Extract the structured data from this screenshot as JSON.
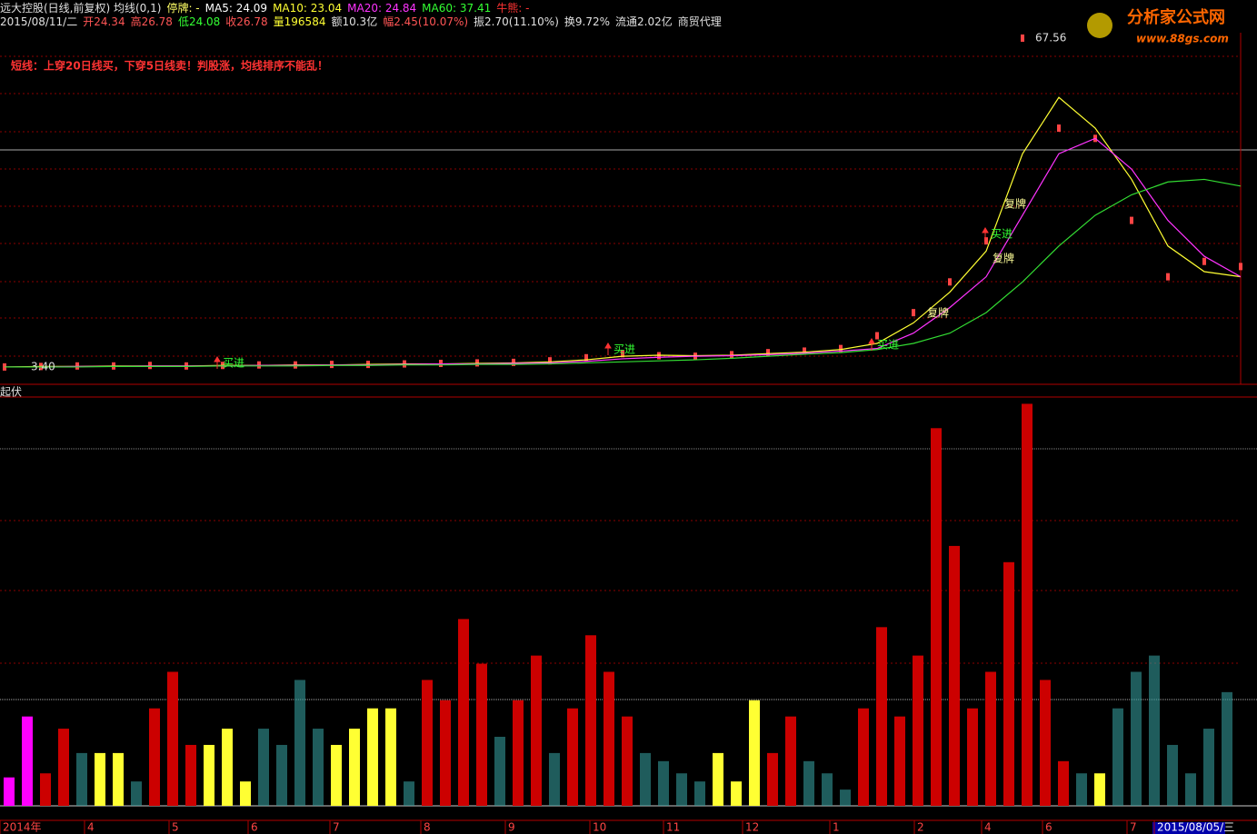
{
  "header": {
    "line1": [
      {
        "text": "远大控股(日线,前复权) 均线(0,1)",
        "color": "#e0e0e0"
      },
      {
        "text": "停牌: -",
        "color": "#ffff66"
      },
      {
        "text": "MA5: 24.09",
        "color": "#ffffff"
      },
      {
        "text": "MA10: 23.04",
        "color": "#ffff33"
      },
      {
        "text": "MA20: 24.84",
        "color": "#ff33ff"
      },
      {
        "text": "MA60: 37.41",
        "color": "#33ff33"
      },
      {
        "text": "牛熊: -",
        "color": "#ff3333"
      }
    ],
    "line2": [
      {
        "text": "2015/08/11/二",
        "color": "#e0e0e0"
      },
      {
        "text": "开24.34",
        "color": "#ff5555"
      },
      {
        "text": "高26.78",
        "color": "#ff5555"
      },
      {
        "text": "低24.08",
        "color": "#33ff33"
      },
      {
        "text": "收26.78",
        "color": "#ff5555"
      },
      {
        "text": "量196584",
        "color": "#ffff33"
      },
      {
        "text": "额10.3亿",
        "color": "#e0e0e0"
      },
      {
        "text": "幅2.45(10.07%)",
        "color": "#ff5555"
      },
      {
        "text": "振2.70(11.10%)",
        "color": "#e0e0e0"
      },
      {
        "text": "换9.72%",
        "color": "#e0e0e0"
      },
      {
        "text": "流通2.02亿",
        "color": "#e0e0e0"
      },
      {
        "text": "商贸代理",
        "color": "#e0e0e0"
      }
    ],
    "note": "短线：上穿20日线买，下穿5日线卖！判股涨，均线排序不能乱！",
    "logo": "分析家公式网",
    "url": "www.88gs.com"
  },
  "chart_data": [
    {
      "type": "line",
      "ylim": [
        0.2,
        71.1
      ],
      "max_label": {
        "value": 67.56,
        "label": "67.56"
      },
      "min_label": {
        "value": 3.4,
        "label": "3.40"
      },
      "annotations": [
        "买进",
        "买进",
        "买进",
        "买进",
        "复牌",
        "复牌",
        "复牌"
      ],
      "series": [
        {
          "color": "#ff4444",
          "values": [
            3.4,
            3.5,
            3.6,
            3.6,
            3.7,
            3.6,
            3.7,
            3.8,
            3.8,
            3.9,
            3.9,
            4.0,
            4.1,
            4.2,
            4.3,
            4.6,
            5.2,
            6.0,
            5.6,
            5.5,
            5.8,
            6.2,
            6.5,
            7.0,
            9.5,
            14,
            20,
            28,
            67.56,
            50,
            48,
            32,
            21,
            24,
            23
          ]
        },
        {
          "color": "#ffff33",
          "values": [
            3.4,
            3.5,
            3.5,
            3.6,
            3.6,
            3.6,
            3.7,
            3.7,
            3.8,
            3.8,
            3.9,
            4.0,
            4.0,
            4.1,
            4.2,
            4.4,
            4.8,
            5.5,
            5.7,
            5.6,
            5.7,
            6.0,
            6.3,
            6.8,
            8,
            12,
            18,
            26,
            45,
            56,
            50,
            40,
            27,
            22,
            21
          ]
        },
        {
          "color": "#ff33ff",
          "values": [
            3.4,
            3.4,
            3.5,
            3.5,
            3.6,
            3.6,
            3.6,
            3.7,
            3.7,
            3.8,
            3.8,
            3.9,
            4.0,
            4.0,
            4.1,
            4.2,
            4.5,
            5.0,
            5.3,
            5.5,
            5.6,
            5.8,
            6.1,
            6.5,
            7,
            10,
            15,
            21,
            33,
            45,
            48,
            42,
            32,
            25,
            21
          ]
        },
        {
          "color": "#33dd33",
          "values": [
            3.4,
            3.4,
            3.4,
            3.5,
            3.5,
            3.5,
            3.6,
            3.6,
            3.6,
            3.7,
            3.7,
            3.8,
            3.8,
            3.9,
            3.9,
            4.0,
            4.2,
            4.4,
            4.6,
            4.8,
            5.1,
            5.5,
            5.9,
            6.2,
            6.8,
            8,
            10,
            14,
            20,
            27,
            33,
            37,
            39.5,
            40,
            38.7
          ]
        }
      ]
    },
    {
      "type": "bar",
      "title": "起伏",
      "ylim": [
        0,
        100
      ],
      "xlabels": [
        "2014年",
        "4",
        "5",
        "6",
        "7",
        "8",
        "9",
        "10",
        "11",
        "12",
        "1",
        "2",
        "4",
        "6",
        "7",
        "2015/08/05/三"
      ],
      "values": [
        7,
        22,
        8,
        19,
        13,
        13,
        13,
        6,
        24,
        33,
        15,
        15,
        19,
        6,
        19,
        15,
        31,
        19,
        15,
        19,
        24,
        24,
        6,
        31,
        26,
        46,
        35,
        17,
        26,
        37,
        13,
        24,
        42,
        33,
        22,
        13,
        11,
        8,
        6,
        13,
        6,
        26,
        13,
        22,
        11,
        8,
        4,
        24,
        44,
        22,
        37,
        93,
        64,
        24,
        33,
        60,
        99,
        31,
        11,
        8,
        8,
        24,
        33,
        37,
        15,
        8,
        19,
        28
      ],
      "colors": [
        "#ff00ff",
        "#ff00ff",
        "#cc0000",
        "#cc0000",
        "#339999",
        "#ffff33",
        "#ffff33",
        "#339999",
        "#cc0000",
        "#cc0000",
        "#cc0000",
        "#ffff33",
        "#ffff33",
        "#ffff33",
        "#339999",
        "#339999",
        "#339999",
        "#339999",
        "#ffff33",
        "#ffff33",
        "#ffff33",
        "#ffff33",
        "#339999",
        "#cc0000",
        "#cc0000",
        "#cc0000",
        "#cc0000",
        "#339999",
        "#cc0000",
        "#cc0000",
        "#339999",
        "#cc0000",
        "#cc0000",
        "#cc0000",
        "#cc0000",
        "#339999",
        "#339999",
        "#339999",
        "#339999",
        "#ffff33",
        "#ffff33",
        "#ffff33",
        "#cc0000",
        "#cc0000",
        "#339999",
        "#339999",
        "#339999",
        "#cc0000",
        "#cc0000",
        "#cc0000",
        "#cc0000",
        "#cc0000",
        "#cc0000",
        "#cc0000",
        "#cc0000",
        "#cc0000",
        "#cc0000",
        "#cc0000",
        "#cc0000",
        "#339999",
        "#ffff33",
        "#339999",
        "#339999",
        "#339999",
        "#339999",
        "#339999",
        "#339999",
        "#339999"
      ]
    }
  ]
}
